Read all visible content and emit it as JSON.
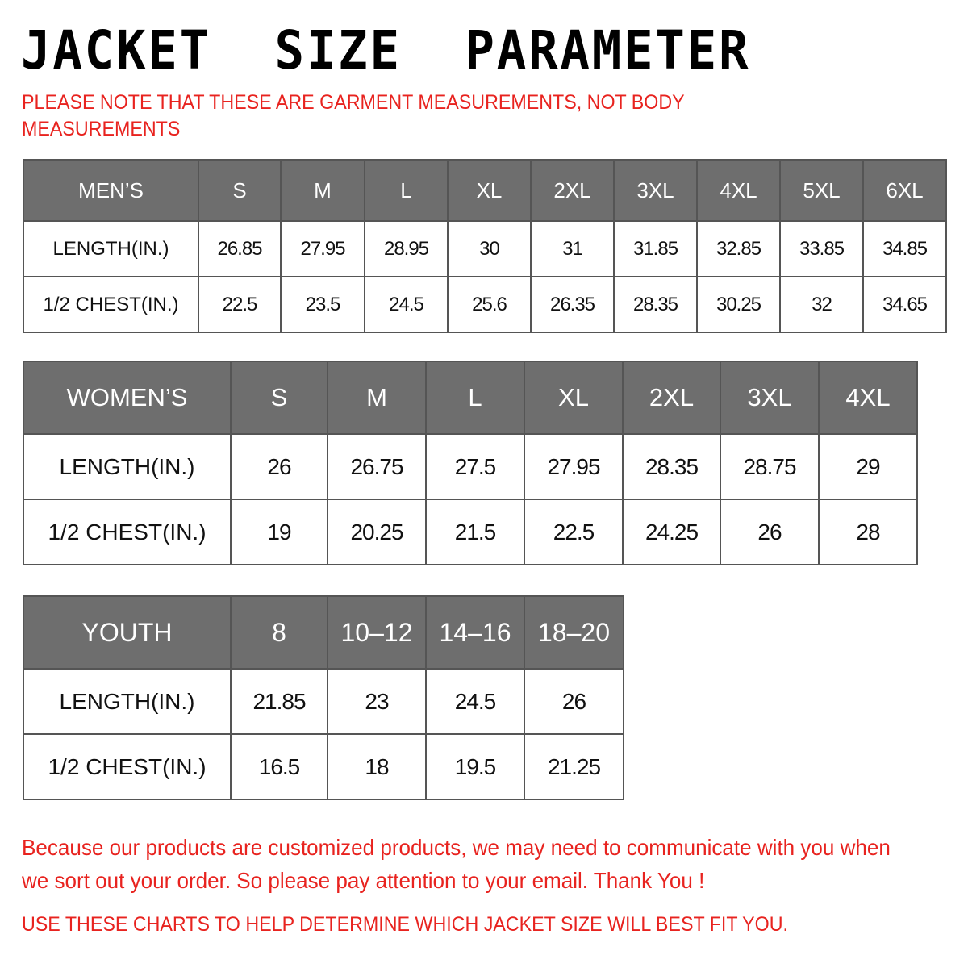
{
  "title": "JACKET  SIZE  PARAMETER",
  "note": "PLEASE NOTE THAT THESE ARE GARMENT MEASUREMENTS, NOT BODY MEASUREMENTS",
  "colors": {
    "header_bg": "#6e6e6e",
    "note_red": "#e8231f"
  },
  "men": {
    "label": "MEN’S",
    "sizes": [
      "S",
      "M",
      "L",
      "XL",
      "2XL",
      "3XL",
      "4XL",
      "5XL",
      "6XL"
    ],
    "rows": [
      {
        "label": "LENGTH(IN.)",
        "values": [
          "26.85",
          "27.95",
          "28.95",
          "30",
          "31",
          "31.85",
          "32.85",
          "33.85",
          "34.85"
        ]
      },
      {
        "label": "1/2 CHEST(IN.)",
        "values": [
          "22.5",
          "23.5",
          "24.5",
          "25.6",
          "26.35",
          "28.35",
          "30.25",
          "32",
          "34.65"
        ]
      }
    ]
  },
  "women": {
    "label": "WOMEN’S",
    "sizes": [
      "S",
      "M",
      "L",
      "XL",
      "2XL",
      "3XL",
      "4XL"
    ],
    "rows": [
      {
        "label": "LENGTH(IN.)",
        "values": [
          "26",
          "26.75",
          "27.5",
          "27.95",
          "28.35",
          "28.75",
          "29"
        ]
      },
      {
        "label": "1/2 CHEST(IN.)",
        "values": [
          "19",
          "20.25",
          "21.5",
          "22.5",
          "24.25",
          "26",
          "28"
        ]
      }
    ]
  },
  "youth": {
    "label": "YOUTH",
    "sizes": [
      "8",
      "10–12",
      "14–16",
      "18–20"
    ],
    "rows": [
      {
        "label": "LENGTH(IN.)",
        "values": [
          "21.85",
          "23",
          "24.5",
          "26"
        ]
      },
      {
        "label": "1/2 CHEST(IN.)",
        "values": [
          "16.5",
          "18",
          "19.5",
          "21.25"
        ]
      }
    ]
  },
  "footer": "Because our products are customized products, we may need to communicate with you when we sort out your order. So please pay attention to your email. Thank You !",
  "footer2": "USE THESE CHARTS TO HELP DETERMINE WHICH JACKET SIZE WILL BEST FIT YOU."
}
